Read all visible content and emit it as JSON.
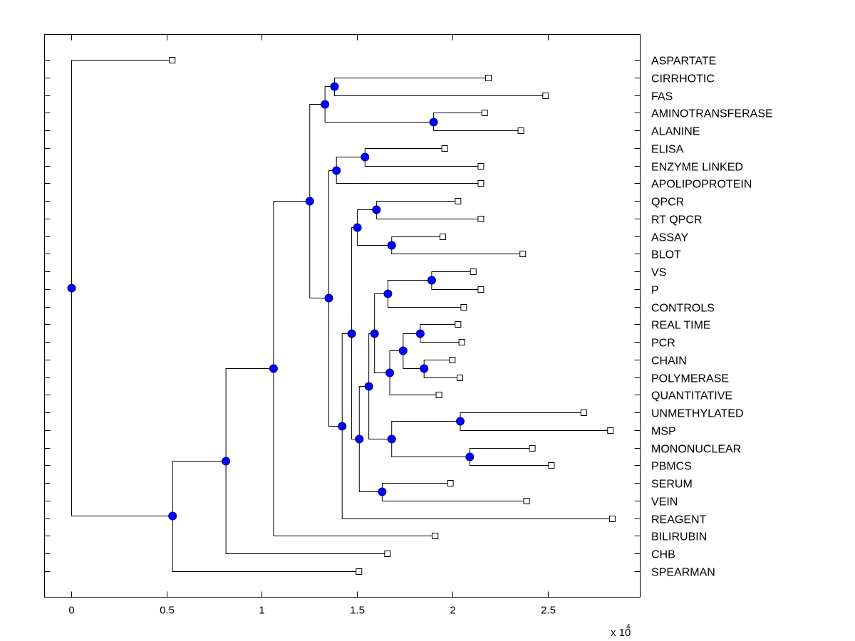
{
  "chart_data": {
    "type": "dendrogram",
    "title": "",
    "xlabel": "",
    "x_multiplier": "x 10",
    "x_multiplier_exponent": "4",
    "xlim": [
      -0.14,
      2.99
    ],
    "xticks": [
      0,
      0.5,
      1,
      1.5,
      2,
      2.5
    ],
    "xtick_labels": [
      "0",
      "0.5",
      "1",
      "1.5",
      "2",
      "2.5"
    ],
    "grid": false,
    "leaf_label_side": "right",
    "leaves": [
      {
        "label": "ASPARTATE",
        "x": 0.53
      },
      {
        "label": "CIRRHOTIC",
        "x": 2.19
      },
      {
        "label": "FAS",
        "x": 2.49
      },
      {
        "label": "AMINOTRANSFERASE",
        "x": 2.17
      },
      {
        "label": "ALANINE",
        "x": 2.36
      },
      {
        "label": "ELISA",
        "x": 1.96
      },
      {
        "label": "ENZYME LINKED",
        "x": 2.15
      },
      {
        "label": "APOLIPOPROTEIN",
        "x": 2.15
      },
      {
        "label": "QPCR",
        "x": 2.03
      },
      {
        "label": "RT QPCR",
        "x": 2.15
      },
      {
        "label": "ASSAY",
        "x": 1.95
      },
      {
        "label": "BLOT",
        "x": 2.37
      },
      {
        "label": "VS",
        "x": 2.11
      },
      {
        "label": "P",
        "x": 2.15
      },
      {
        "label": "CONTROLS",
        "x": 2.06
      },
      {
        "label": "REAL TIME",
        "x": 2.03
      },
      {
        "label": "PCR",
        "x": 2.05
      },
      {
        "label": "CHAIN",
        "x": 2.0
      },
      {
        "label": "POLYMERASE",
        "x": 2.04
      },
      {
        "label": "QUANTITATIVE",
        "x": 1.93
      },
      {
        "label": "UNMETHYLATED",
        "x": 2.69
      },
      {
        "label": "MSP",
        "x": 2.83
      },
      {
        "label": "MONONUCLEAR",
        "x": 2.42
      },
      {
        "label": "PBMCS",
        "x": 2.52
      },
      {
        "label": "SERUM",
        "x": 1.99
      },
      {
        "label": "VEIN",
        "x": 2.39
      },
      {
        "label": "REAGENT",
        "x": 2.84
      },
      {
        "label": "BILIRUBIN",
        "x": 1.91
      },
      {
        "label": "CHB",
        "x": 1.66
      },
      {
        "label": "SPEARMAN",
        "x": 1.51
      }
    ],
    "tree": {
      "x": 0,
      "children": [
        {
          "leaf": 0
        },
        {
          "x": 0.53,
          "children": [
            {
              "x": 0.81,
              "children": [
                {
                  "x": 1.06,
                  "children": [
                    {
                      "x": 1.25,
                      "children": [
                        {
                          "x": 1.33,
                          "children": [
                            {
                              "x": 1.38,
                              "children": [
                                {
                                  "leaf": 1
                                },
                                {
                                  "leaf": 2
                                }
                              ]
                            },
                            {
                              "x": 1.9,
                              "children": [
                                {
                                  "leaf": 3
                                },
                                {
                                  "leaf": 4
                                }
                              ]
                            }
                          ]
                        },
                        {
                          "x": 1.35,
                          "children": [
                            {
                              "x": 1.39,
                              "children": [
                                {
                                  "x": 1.54,
                                  "children": [
                                    {
                                      "leaf": 5
                                    },
                                    {
                                      "leaf": 6
                                    }
                                  ]
                                },
                                {
                                  "leaf": 7
                                }
                              ]
                            },
                            {
                              "x": 1.42,
                              "children": [
                                {
                                  "x": 1.47,
                                  "children": [
                                    {
                                      "x": 1.5,
                                      "children": [
                                        {
                                          "x": 1.6,
                                          "children": [
                                            {
                                              "leaf": 8
                                            },
                                            {
                                              "leaf": 9
                                            }
                                          ]
                                        },
                                        {
                                          "x": 1.68,
                                          "children": [
                                            {
                                              "leaf": 10
                                            },
                                            {
                                              "leaf": 11
                                            }
                                          ]
                                        }
                                      ]
                                    },
                                    {
                                      "x": 1.51,
                                      "children": [
                                        {
                                          "x": 1.56,
                                          "children": [
                                            {
                                              "x": 1.59,
                                              "children": [
                                                {
                                                  "x": 1.66,
                                                  "children": [
                                                    {
                                                      "x": 1.89,
                                                      "children": [
                                                        {
                                                          "leaf": 12
                                                        },
                                                        {
                                                          "leaf": 13
                                                        }
                                                      ]
                                                    },
                                                    {
                                                      "leaf": 14
                                                    }
                                                  ]
                                                },
                                                {
                                                  "x": 1.67,
                                                  "children": [
                                                    {
                                                      "x": 1.74,
                                                      "children": [
                                                        {
                                                          "x": 1.83,
                                                          "children": [
                                                            {
                                                              "leaf": 15
                                                            },
                                                            {
                                                              "leaf": 16
                                                            }
                                                          ]
                                                        },
                                                        {
                                                          "x": 1.85,
                                                          "children": [
                                                            {
                                                              "leaf": 17
                                                            },
                                                            {
                                                              "leaf": 18
                                                            }
                                                          ]
                                                        }
                                                      ]
                                                    },
                                                    {
                                                      "leaf": 19
                                                    }
                                                  ]
                                                }
                                              ]
                                            },
                                            {
                                              "x": 1.68,
                                              "children": [
                                                {
                                                  "x": 2.04,
                                                  "children": [
                                                    {
                                                      "leaf": 20
                                                    },
                                                    {
                                                      "leaf": 21
                                                    }
                                                  ]
                                                },
                                                {
                                                  "x": 2.09,
                                                  "children": [
                                                    {
                                                      "leaf": 22
                                                    },
                                                    {
                                                      "leaf": 23
                                                    }
                                                  ]
                                                }
                                              ]
                                            }
                                          ]
                                        },
                                        {
                                          "x": 1.63,
                                          "children": [
                                            {
                                              "leaf": 24
                                            },
                                            {
                                              "leaf": 25
                                            }
                                          ]
                                        }
                                      ]
                                    }
                                  ]
                                },
                                {
                                  "leaf": 26
                                }
                              ]
                            }
                          ]
                        }
                      ]
                    },
                    {
                      "leaf": 27
                    }
                  ]
                },
                {
                  "leaf": 28
                }
              ]
            },
            {
              "leaf": 29
            }
          ]
        }
      ]
    }
  }
}
